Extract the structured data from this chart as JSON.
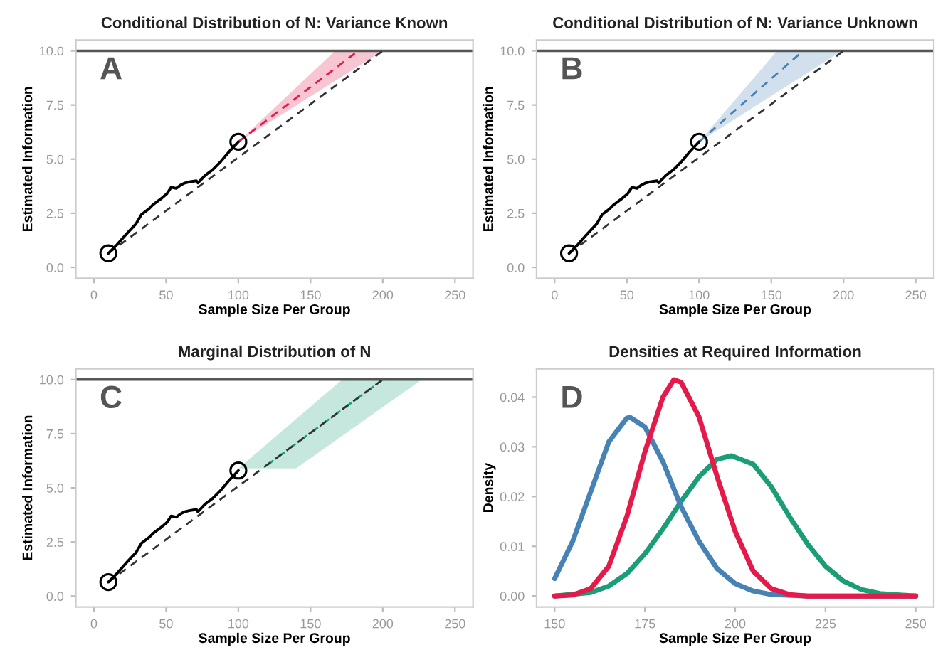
{
  "chart_data": [
    {
      "type": "line",
      "title": "Conditional Distribution of N: Variance Known",
      "xlabel": "Sample Size Per Group",
      "ylabel": "Estimated Information",
      "annotations": [
        "A"
      ],
      "xlim": [
        -12.5,
        262.5
      ],
      "ylim": [
        -0.5,
        10.5
      ],
      "xticks": [
        0,
        50,
        100,
        150,
        200,
        250
      ],
      "yticks": [
        {
          "value": 0,
          "label": "0.0"
        },
        {
          "value": 2.5,
          "label": "2.5"
        },
        {
          "value": 5,
          "label": "5.0"
        },
        {
          "value": 7.5,
          "label": "7.5"
        },
        {
          "value": 10,
          "label": "10.0"
        }
      ],
      "ref_lines": [
        {
          "axis": "y",
          "value": 10,
          "color": "#555555"
        }
      ],
      "series": [
        {
          "color": "#e31a4a",
          "line_style": "dashed",
          "x": [
            100,
            167,
            183,
            200
          ],
          "values": [
            5.8,
            9.19,
            10,
            null
          ],
          "lower": [
            5.8,
            8.61,
            9.29,
            10
          ],
          "upper": [
            5.8,
            10,
            10,
            10
          ]
        },
        {
          "type": "line",
          "color": "#333333",
          "line_style": "dashed",
          "x": [
            10,
            200
          ],
          "values": [
            0.65,
            10
          ]
        },
        {
          "type": "line",
          "color": "#000000",
          "line_style": "solid",
          "x": [
            10,
            16,
            22.5,
            29,
            33,
            38,
            41,
            47,
            50.5,
            53.5,
            57,
            60,
            63,
            66,
            71,
            72,
            77,
            82,
            88,
            93,
            100
          ],
          "values": [
            0.65,
            1.05,
            1.54,
            2.0,
            2.45,
            2.7,
            2.9,
            3.2,
            3.4,
            3.7,
            3.65,
            3.8,
            3.9,
            3.95,
            4.0,
            3.9,
            4.25,
            4.5,
            4.9,
            5.3,
            5.8
          ]
        },
        {
          "type": "scatter",
          "marker": "circle",
          "color": "#000000",
          "x": [
            10,
            100
          ],
          "values": [
            0.65,
            5.8
          ]
        }
      ]
    },
    {
      "type": "line",
      "title": "Conditional Distribution of N: Variance Unknown",
      "xlabel": "Sample Size Per Group",
      "ylabel": "Estimated Information",
      "annotations": [
        "B"
      ],
      "xlim": [
        -12.5,
        262.5
      ],
      "ylim": [
        -0.5,
        10.5
      ],
      "xticks": [
        0,
        50,
        100,
        150,
        200,
        250
      ],
      "yticks": [
        {
          "value": 0,
          "label": "0.0"
        },
        {
          "value": 2.5,
          "label": "2.5"
        },
        {
          "value": 5,
          "label": "5.0"
        },
        {
          "value": 7.5,
          "label": "7.5"
        },
        {
          "value": 10,
          "label": "10.0"
        }
      ],
      "ref_lines": [
        {
          "axis": "y",
          "value": 10,
          "color": "#555555"
        }
      ],
      "series": [
        {
          "color": "#4682b4",
          "line_style": "dashed",
          "x": [
            100,
            154,
            172,
            199
          ],
          "values": [
            5.8,
            8.95,
            10,
            null
          ],
          "lower": [
            5.8,
            8.09,
            8.85,
            10
          ],
          "upper": [
            5.8,
            10,
            10,
            10
          ]
        },
        {
          "type": "line",
          "color": "#333333",
          "line_style": "dashed",
          "x": [
            10,
            200
          ],
          "values": [
            0.65,
            10
          ]
        },
        {
          "type": "line",
          "color": "#000000",
          "line_style": "solid",
          "x": [
            10,
            16,
            22.5,
            29,
            33,
            38,
            41,
            47,
            50.5,
            53.5,
            57,
            60,
            63,
            66,
            71,
            72,
            77,
            82,
            88,
            93,
            100
          ],
          "values": [
            0.65,
            1.05,
            1.54,
            2.0,
            2.45,
            2.7,
            2.9,
            3.2,
            3.4,
            3.7,
            3.65,
            3.8,
            3.9,
            3.95,
            4.0,
            3.9,
            4.25,
            4.5,
            4.9,
            5.3,
            5.8
          ]
        },
        {
          "type": "scatter",
          "marker": "circle",
          "color": "#000000",
          "x": [
            10,
            100
          ],
          "values": [
            0.65,
            5.8
          ]
        }
      ]
    },
    {
      "type": "line",
      "title": "Marginal Distribution of N",
      "xlabel": "Sample Size Per Group",
      "ylabel": "Estimated Information",
      "annotations": [
        "C"
      ],
      "xlim": [
        -12.5,
        262.5
      ],
      "ylim": [
        -0.5,
        10.5
      ],
      "xticks": [
        0,
        50,
        100,
        150,
        200,
        250
      ],
      "yticks": [
        {
          "value": 0,
          "label": "0.0"
        },
        {
          "value": 2.5,
          "label": "2.5"
        },
        {
          "value": 5,
          "label": "5.0"
        },
        {
          "value": 7.5,
          "label": "7.5"
        },
        {
          "value": 10,
          "label": "10.0"
        }
      ],
      "ref_lines": [
        {
          "axis": "y",
          "value": 10,
          "color": "#555555"
        }
      ],
      "series": [
        {
          "color": "#1b9e77",
          "line_style": "dashed",
          "x": [
            100,
            120,
            140,
            172,
            200,
            227
          ],
          "values": [
            null,
            6.05,
            7.05,
            8.62,
            10,
            null
          ],
          "lower": [
            5.9,
            5.9,
            5.9,
            7.41,
            8.73,
            10
          ],
          "upper": [
            5.9,
            7.04,
            8.18,
            10,
            10,
            10
          ]
        },
        {
          "type": "line",
          "color": "#333333",
          "line_style": "dashed",
          "x": [
            10,
            200
          ],
          "values": [
            0.65,
            10
          ]
        },
        {
          "type": "line",
          "color": "#000000",
          "line_style": "solid",
          "x": [
            10,
            16,
            22.5,
            29,
            33,
            38,
            41,
            47,
            50.5,
            53.5,
            57,
            60,
            63,
            66,
            71,
            72,
            77,
            82,
            88,
            93,
            100
          ],
          "values": [
            0.65,
            1.05,
            1.54,
            2.0,
            2.45,
            2.7,
            2.9,
            3.2,
            3.4,
            3.7,
            3.65,
            3.8,
            3.9,
            3.95,
            4.0,
            3.9,
            4.25,
            4.5,
            4.9,
            5.3,
            5.8
          ]
        },
        {
          "type": "scatter",
          "marker": "circle",
          "color": "#000000",
          "x": [
            10,
            100
          ],
          "values": [
            0.65,
            5.8
          ]
        }
      ]
    },
    {
      "type": "line",
      "title": "Densities at Required Information",
      "xlabel": "Sample Size Per Group",
      "ylabel": "Density",
      "annotations": [
        "D"
      ],
      "xlim": [
        145,
        255
      ],
      "ylim": [
        -0.0022,
        0.0457
      ],
      "xticks": [
        150,
        175,
        200,
        225,
        250
      ],
      "yticks": [
        {
          "value": 0,
          "label": "0.00"
        },
        0.01,
        0.02,
        0.03,
        0.04
      ],
      "series": [
        {
          "color": "#1b9e77",
          "line_style": "solid",
          "x": [
            150,
            160,
            165,
            170,
            175,
            180,
            185,
            190,
            195,
            199,
            205,
            210,
            215,
            220,
            225,
            230,
            235,
            240,
            250
          ],
          "values": [
            0,
            0.0007,
            0.002,
            0.0045,
            0.0085,
            0.0135,
            0.019,
            0.024,
            0.0275,
            0.0282,
            0.0265,
            0.022,
            0.016,
            0.0105,
            0.006,
            0.003,
            0.0013,
            0.0005,
            0
          ]
        },
        {
          "color": "#4682b4",
          "line_style": "solid",
          "x": [
            150,
            155,
            160,
            165,
            170,
            171,
            175,
            180,
            185,
            190,
            195,
            200,
            205,
            210,
            220,
            250
          ],
          "values": [
            0.0035,
            0.011,
            0.021,
            0.031,
            0.0358,
            0.0359,
            0.034,
            0.027,
            0.018,
            0.011,
            0.0055,
            0.0025,
            0.001,
            0.0003,
            0,
            0
          ]
        },
        {
          "color": "#e31a4a",
          "line_style": "solid",
          "x": [
            150,
            155,
            160,
            165,
            170,
            175,
            180,
            183,
            185,
            190,
            195,
            200,
            205,
            210,
            215,
            220,
            250
          ],
          "values": [
            0,
            0.0002,
            0.0015,
            0.006,
            0.016,
            0.029,
            0.04,
            0.0435,
            0.043,
            0.036,
            0.024,
            0.013,
            0.005,
            0.0015,
            0.0003,
            0,
            0
          ]
        }
      ]
    }
  ]
}
